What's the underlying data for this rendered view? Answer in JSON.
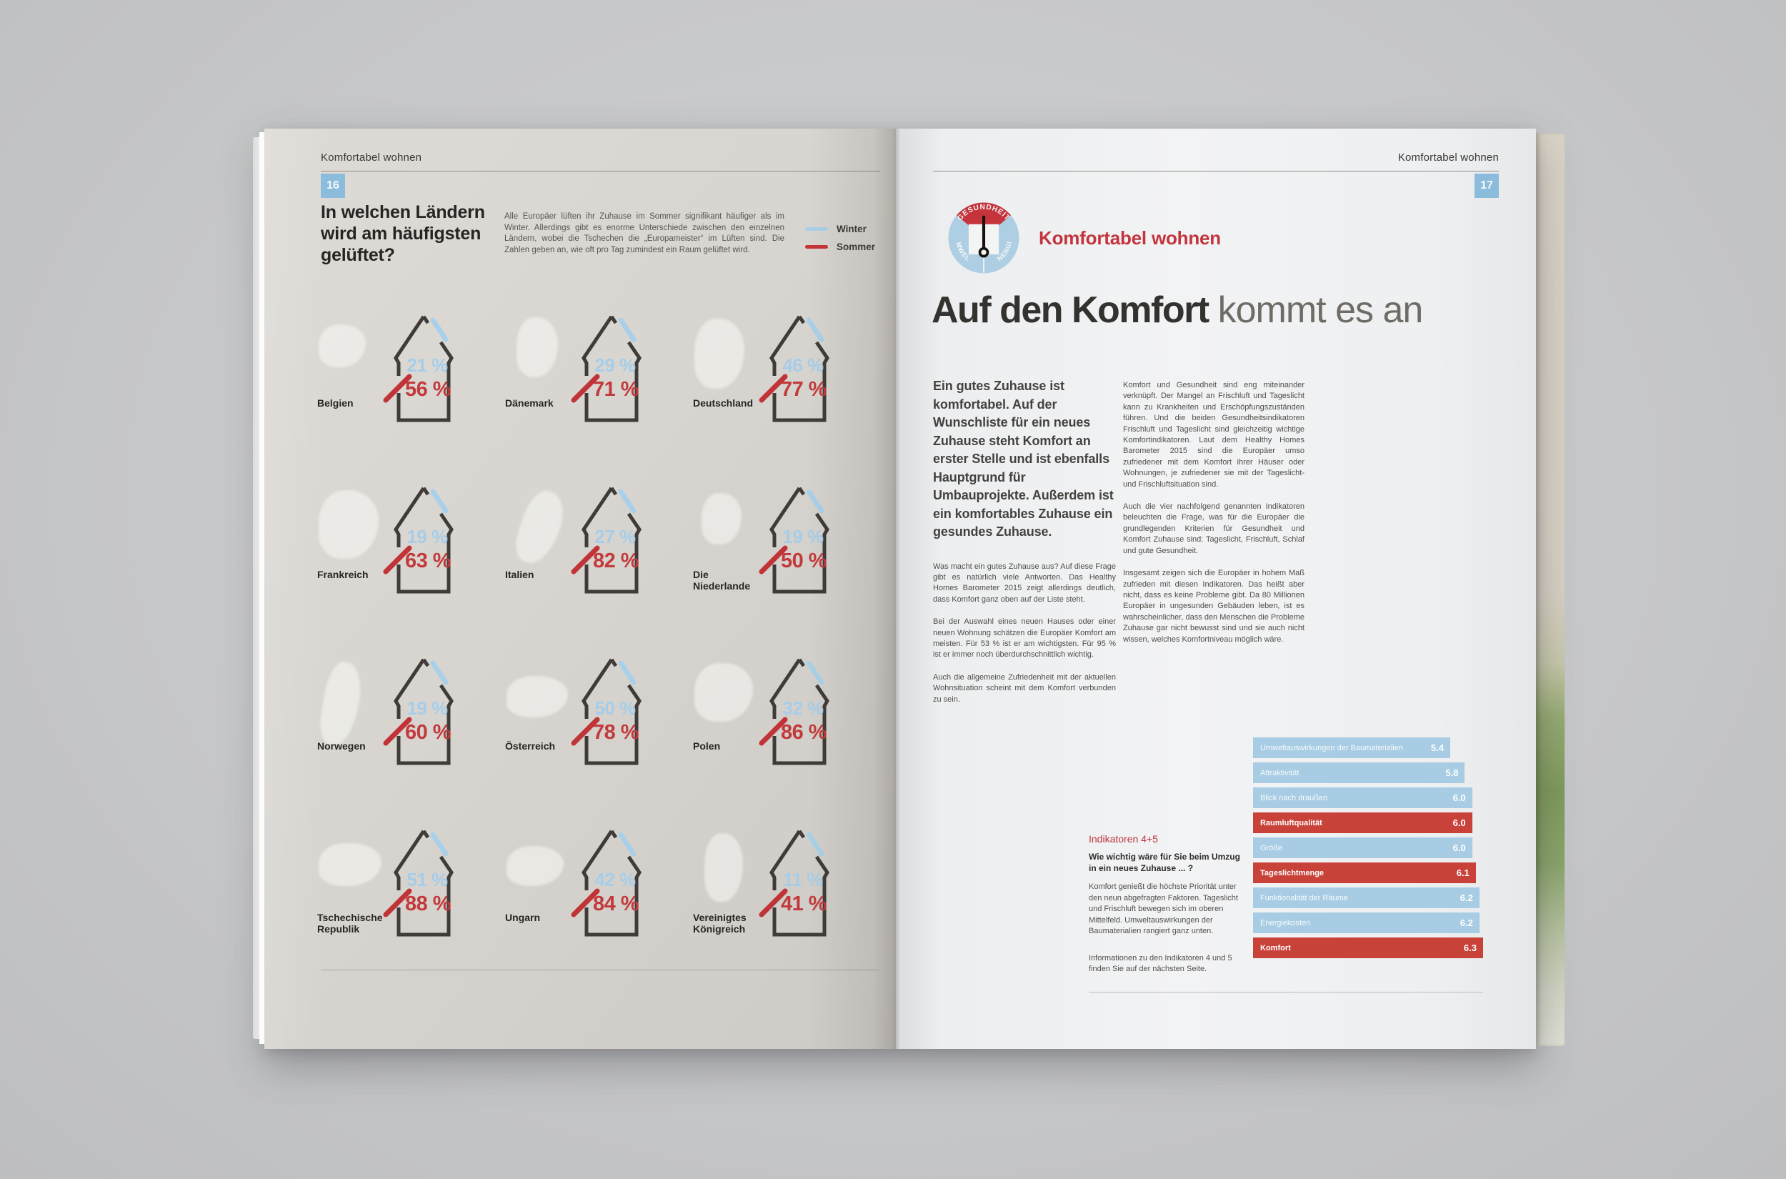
{
  "left_page": {
    "header": "Komfortabel wohnen",
    "page_number": "16",
    "title": "In welchen Ländern wird am häufigsten gelüftet?",
    "intro": "Alle Europäer lüften ihr Zuhause im Sommer signifikant häufiger als im Winter. Allerdings gibt es enorme Unterschiede zwischen den einzelnen Ländern, wobei die Tschechen die „Europameister“ im Lüften sind. Die Zahlen geben an, wie oft pro Tag zumindest ein Raum gelüftet wird.",
    "legend": {
      "winter": "Winter",
      "sommer": "Sommer"
    }
  },
  "right_page": {
    "header": "Komfortabel wohnen",
    "page_number": "17",
    "badge": {
      "top": "GESUNDHEIT",
      "left": "UMWELT",
      "right": "ENERGIE"
    },
    "kicker": "Komfortabel wohnen",
    "headline_strong": "Auf den Komfort",
    "headline_light": "kommt es an",
    "lead": "Ein gutes Zuhause ist komfortabel. Auf der Wunschliste für ein neues Zuhause steht Komfort an erster Stelle und ist ebenfalls Hauptgrund für Umbauprojekte. Außerdem ist ein komfortables Zuhause ein gesundes Zuhause.",
    "col1": [
      "Was macht ein gutes Zuhause aus? Auf diese Frage gibt es natürlich viele Antworten. Das Healthy Homes Barometer 2015 zeigt allerdings deutlich, dass Komfort ganz oben auf der Liste steht.",
      "Bei der Auswahl eines neuen Hauses oder einer neuen Wohnung schätzen die Europäer Komfort am meisten. Für 53 % ist er am wichtigsten. Für 95 % ist er immer noch überdurchschnittlich wichtig.",
      "Auch die allgemeine Zufriedenheit mit der aktuellen Wohnsituation scheint mit dem Komfort verbunden zu sein."
    ],
    "col2": [
      "Komfort und Gesundheit sind eng miteinander verknüpft. Der Mangel an Frischluft und Tageslicht kann zu Krankheiten und Erschöpfungszuständen führen. Und die beiden Gesundheitsindikatoren Frischluft und Tageslicht sind gleichzeitig wichtige Komfortindikatoren. Laut dem Healthy Homes Barometer 2015 sind die Europäer umso zufriedener mit dem Komfort ihrer Häuser oder Wohnungen, je zufriedener sie mit der Tageslicht- und Frischluftsituation sind.",
      "Auch die vier nachfolgend genannten Indikatoren beleuchten die Frage, was für die Europäer die grundlegenden Kriterien für Gesundheit und Komfort Zuhause sind: Tageslicht, Frischluft, Schlaf und gute Gesundheit.",
      "Insgesamt zeigen sich die Europäer in hohem Maß zufrieden mit diesen Indikatoren. Das heißt aber nicht, dass es keine Probleme gibt. Da 80 Millionen Europäer in ungesunden Gebäuden leben, ist es wahrscheinlicher, dass den Menschen die Probleme Zuhause gar nicht bewusst sind und sie auch nicht wissen, welches Komfortniveau möglich wäre."
    ],
    "indicator_box": {
      "heading": "Indikatoren 4+5",
      "question": "Wie wichtig wäre für Sie beim Umzug in ein neues Zuhause ... ?",
      "body": "Komfort genießt die höchste Priorität unter den neun abgefragten Faktoren. Tageslicht und Frischluft bewegen sich im oberen Mittelfeld. Umweltauswirkungen der Baumaterialien rangiert ganz unten.",
      "note": "Informationen zu den Indikatoren 4 und 5 finden Sie auf der nächsten Seite."
    }
  },
  "colors": {
    "accent_blue": "#8cbcdc",
    "accent_red": "#c5343b",
    "winter_blue": "#a6cde9",
    "sommer_red": "#c23a3c",
    "bar_blue": "#a7cce3",
    "bar_red": "#c8423a"
  },
  "chart_data": [
    {
      "type": "pictogram-bar",
      "title": "In welchen Ländern wird am häufigsten gelüftet?",
      "unit": "%",
      "legend_position": "top-right",
      "categories": [
        "Belgien",
        "Dänemark",
        "Deutschland",
        "Frankreich",
        "Italien",
        "Die Niederlande",
        "Norwegen",
        "Österreich",
        "Polen",
        "Tschechische Republik",
        "Ungarn",
        "Vereinigtes Königreich"
      ],
      "series": [
        {
          "name": "Winter",
          "color": "#a6cde9",
          "values": [
            21,
            29,
            46,
            19,
            27,
            19,
            19,
            50,
            32,
            51,
            42,
            11
          ]
        },
        {
          "name": "Sommer",
          "color": "#c23a3c",
          "values": [
            56,
            71,
            77,
            63,
            82,
            50,
            60,
            78,
            86,
            88,
            84,
            41
          ]
        }
      ]
    },
    {
      "type": "bar",
      "orientation": "horizontal",
      "title": "Wie wichtig wäre für Sie beim Umzug in ein neues Zuhause ... ?",
      "categories": [
        "Umweltauswirkungen der Baumaterialien",
        "Attraktivität",
        "Blick nach draußen",
        "Raumluftqualität",
        "Größe",
        "Tageslichtmenge",
        "Funktionalität der Räume",
        "Energiekosten",
        "Komfort"
      ],
      "values": [
        5.4,
        5.8,
        6.0,
        6.0,
        6.0,
        6.1,
        6.2,
        6.2,
        6.3
      ],
      "highlighted": [
        "Raumluftqualität",
        "Tageslichtmenge",
        "Komfort"
      ],
      "xlim": [
        0,
        6.3
      ],
      "grid": false,
      "bar_colors": {
        "default": "#a7cce3",
        "highlight": "#c8423a"
      }
    }
  ]
}
